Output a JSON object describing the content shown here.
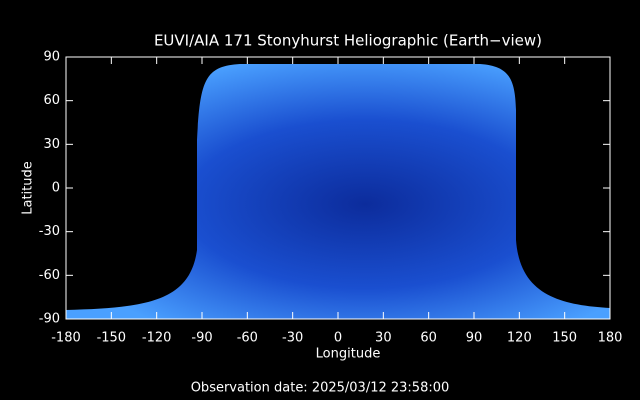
{
  "chart_data": {
    "type": "image-map",
    "title": "EUVI/AIA 171 Stonyhurst Heliographic (Earth−view)",
    "xlabel": "Longitude",
    "ylabel": "Latitude",
    "footer": "Observation date: 2025/03/12 23:58:00",
    "xlim": [
      -180,
      180
    ],
    "xticks": [
      -180,
      -150,
      -120,
      -90,
      -60,
      -30,
      0,
      30,
      60,
      90,
      120,
      150,
      180
    ],
    "ylim": [
      -90,
      90
    ],
    "yticks": [
      -90,
      -60,
      -30,
      0,
      30,
      60,
      90
    ]
  }
}
